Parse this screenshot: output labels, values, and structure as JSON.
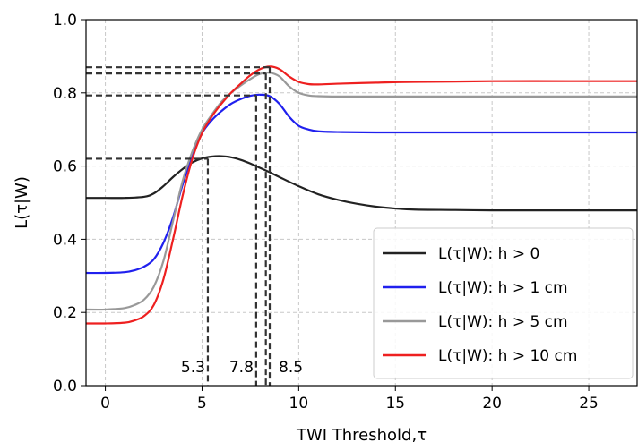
{
  "chart_data": {
    "type": "line",
    "title": "",
    "xlabel": "TWI Threshold,τ",
    "ylabel": "L(τ|W)",
    "xlim": [
      -1,
      27.5
    ],
    "ylim": [
      0,
      1
    ],
    "xticks": [
      0,
      5,
      10,
      15,
      20,
      25
    ],
    "yticks": [
      0.0,
      0.2,
      0.4,
      0.6,
      0.8,
      1.0
    ],
    "grid": true,
    "legend_position": "lower-right",
    "series": [
      {
        "name": "L(τ|W): h > 0",
        "color": "#222222",
        "x": [
          -1,
          0,
          1,
          2,
          2.5,
          3,
          3.5,
          4,
          4.5,
          5,
          5.5,
          6,
          6.5,
          7,
          7.5,
          8,
          8.5,
          9,
          10,
          11,
          12,
          13,
          14,
          15,
          16,
          18,
          20,
          22,
          25,
          27.5
        ],
        "y": [
          0.513,
          0.513,
          0.513,
          0.516,
          0.525,
          0.545,
          0.57,
          0.592,
          0.61,
          0.621,
          0.626,
          0.627,
          0.624,
          0.617,
          0.607,
          0.595,
          0.583,
          0.57,
          0.545,
          0.523,
          0.508,
          0.497,
          0.489,
          0.484,
          0.481,
          0.48,
          0.479,
          0.479,
          0.479,
          0.479
        ]
      },
      {
        "name": "L(τ|W): h > 1 cm",
        "color": "#2020ee",
        "x": [
          -1,
          0,
          1,
          1.5,
          2,
          2.5,
          3,
          3.5,
          4,
          4.5,
          5,
          5.5,
          6,
          6.5,
          7,
          7.5,
          8,
          8.5,
          9,
          9.5,
          10,
          10.5,
          11,
          12,
          14,
          16,
          20,
          25,
          27.5
        ],
        "y": [
          0.308,
          0.308,
          0.31,
          0.315,
          0.325,
          0.345,
          0.39,
          0.46,
          0.55,
          0.63,
          0.69,
          0.725,
          0.75,
          0.77,
          0.783,
          0.792,
          0.795,
          0.791,
          0.77,
          0.735,
          0.71,
          0.7,
          0.695,
          0.693,
          0.692,
          0.692,
          0.692,
          0.692,
          0.692
        ]
      },
      {
        "name": "L(τ|W): h > 5 cm",
        "color": "#999999",
        "x": [
          -1,
          0,
          1,
          1.5,
          2,
          2.5,
          3,
          3.5,
          4,
          4.5,
          5,
          5.5,
          6,
          6.5,
          7,
          7.5,
          8,
          8.5,
          9,
          9.5,
          10,
          10.5,
          11,
          12,
          14,
          16,
          20,
          25,
          27.5
        ],
        "y": [
          0.208,
          0.208,
          0.212,
          0.22,
          0.235,
          0.27,
          0.34,
          0.45,
          0.56,
          0.64,
          0.7,
          0.74,
          0.775,
          0.8,
          0.82,
          0.838,
          0.852,
          0.855,
          0.845,
          0.818,
          0.8,
          0.793,
          0.791,
          0.79,
          0.79,
          0.79,
          0.79,
          0.79,
          0.79
        ]
      },
      {
        "name": "L(τ|W): h > 10 cm",
        "color": "#ee2020",
        "x": [
          -1,
          0,
          1,
          1.5,
          2,
          2.5,
          3,
          3.5,
          4,
          4.5,
          5,
          5.5,
          6,
          6.5,
          7,
          7.5,
          8,
          8.5,
          9,
          9.5,
          10,
          10.5,
          11,
          12,
          14,
          16,
          20,
          25,
          27.5
        ],
        "y": [
          0.17,
          0.17,
          0.172,
          0.178,
          0.19,
          0.22,
          0.29,
          0.4,
          0.52,
          0.62,
          0.69,
          0.735,
          0.77,
          0.8,
          0.825,
          0.848,
          0.865,
          0.872,
          0.865,
          0.845,
          0.83,
          0.824,
          0.823,
          0.825,
          0.828,
          0.83,
          0.832,
          0.832,
          0.832
        ]
      }
    ],
    "reference_lines": [
      {
        "x": 5.3,
        "y": 0.62,
        "label": "5.3"
      },
      {
        "x": 7.8,
        "y": 0.793,
        "label": "7.8"
      },
      {
        "x": 8.3,
        "y": 0.853,
        "label": ""
      },
      {
        "x": 8.5,
        "y": 0.87,
        "label": "8.5"
      }
    ]
  }
}
